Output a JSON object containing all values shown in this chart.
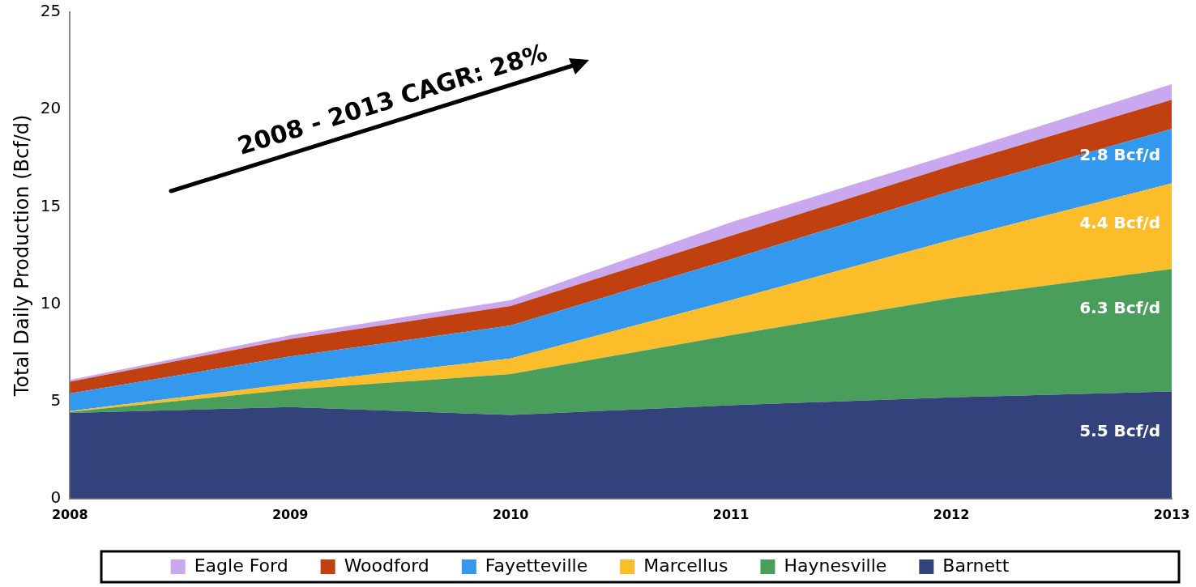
{
  "chart_data": {
    "type": "area",
    "stacked": true,
    "ylabel": "Total Daily Production (Bcf/d)",
    "x": [
      2008,
      2009,
      2010,
      2011,
      2012,
      2013
    ],
    "xlim": [
      2008,
      2013
    ],
    "xticks": [
      2008,
      2009,
      2010,
      2011,
      2012,
      2013
    ],
    "ylim": [
      0,
      25
    ],
    "yticks": [
      0,
      5,
      10,
      15,
      20,
      25
    ],
    "grid": false,
    "legend": "bottom",
    "marker": "none",
    "annotations": [
      "2008 - 2013 CAGR: 28%"
    ],
    "series": [
      {
        "name": "Barnett",
        "color": "#33427a",
        "values": [
          4.4,
          4.7,
          4.3,
          4.8,
          5.2,
          5.5
        ],
        "value_labels": [
          null,
          null,
          null,
          null,
          null,
          "5.5 Bcf/d"
        ]
      },
      {
        "name": "Haynesville",
        "color": "#4a9e5c",
        "values": [
          0.05,
          0.9,
          2.1,
          3.6,
          5.1,
          6.3
        ],
        "value_labels": [
          null,
          null,
          null,
          null,
          null,
          "6.3 Bcf/d"
        ]
      },
      {
        "name": "Marcellus",
        "color": "#fbbd2a",
        "values": [
          0.05,
          0.3,
          0.8,
          1.8,
          3.0,
          4.4
        ],
        "value_labels": [
          null,
          null,
          null,
          null,
          null,
          "4.4 Bcf/d"
        ]
      },
      {
        "name": "Fayetteville",
        "color": "#3399ee",
        "values": [
          0.9,
          1.4,
          1.7,
          2.1,
          2.5,
          2.8
        ],
        "value_labels": [
          null,
          null,
          null,
          null,
          null,
          "2.8 Bcf/d"
        ]
      },
      {
        "name": "Woodford",
        "color": "#c0400f",
        "values": [
          0.6,
          0.9,
          1.0,
          1.2,
          1.3,
          1.5
        ],
        "value_labels": [
          null,
          null,
          null,
          null,
          null,
          null
        ]
      },
      {
        "name": "Eagle Ford",
        "color": "#c9a8ef",
        "values": [
          0.1,
          0.2,
          0.3,
          0.7,
          0.6,
          0.8
        ],
        "value_labels": [
          null,
          null,
          null,
          null,
          null,
          null
        ]
      }
    ]
  }
}
